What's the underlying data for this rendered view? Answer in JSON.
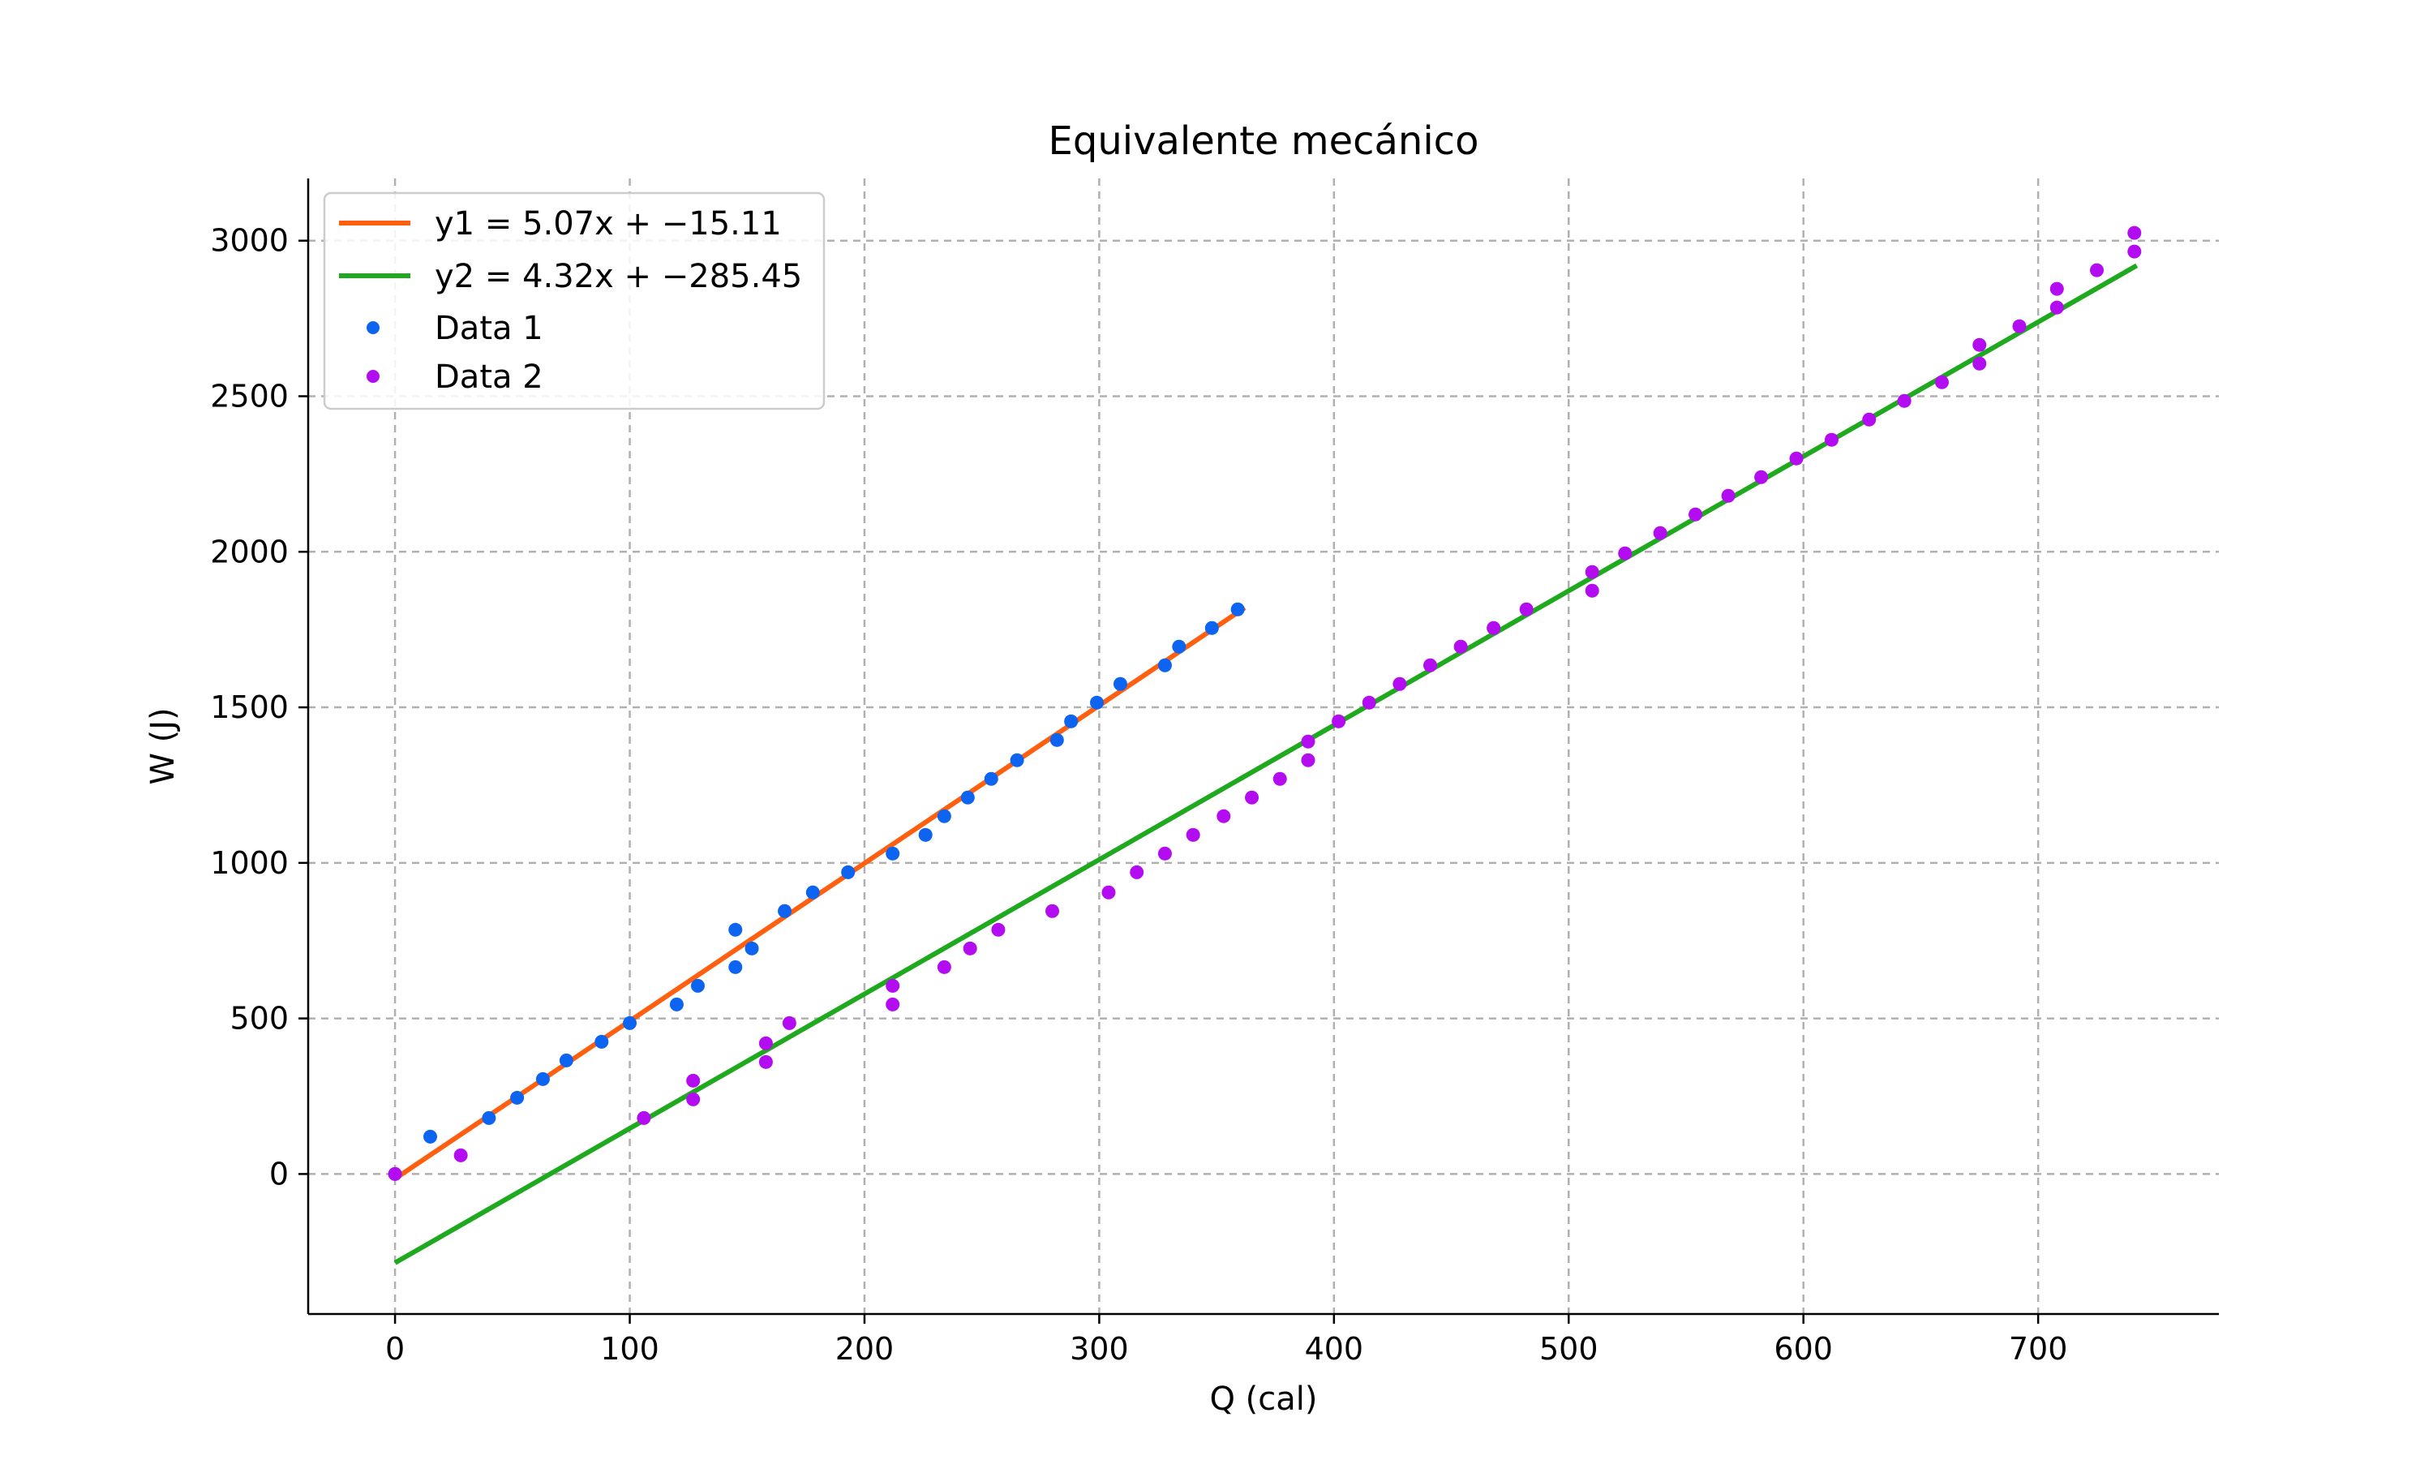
{
  "chart_data": {
    "type": "scatter",
    "title": "Equivalente mecánico",
    "xlabel": "Q (cal)",
    "ylabel": "W (J)",
    "xlim": [
      -37,
      777
    ],
    "ylim": [
      -450,
      3200
    ],
    "xticks": [
      0,
      100,
      200,
      300,
      400,
      500,
      600,
      700
    ],
    "yticks": [
      0,
      500,
      1000,
      1500,
      2000,
      2500,
      3000
    ],
    "grid": true,
    "legend_position": "top-left",
    "fits": [
      {
        "name": "y1 = 5.07x + −15.11",
        "slope": 5.07,
        "intercept": -15.11,
        "x_range": [
          0,
          362
        ],
        "color": "#ff5f0f"
      },
      {
        "name": "y2 = 4.32x + −285.45",
        "slope": 4.32,
        "intercept": -285.45,
        "x_range": [
          0,
          742
        ],
        "color": "#1ea91e"
      }
    ],
    "series": [
      {
        "name": "Data 1",
        "color": "#0d64f0",
        "points": [
          [
            0,
            0
          ],
          [
            15,
            120
          ],
          [
            40,
            180
          ],
          [
            52,
            245
          ],
          [
            63,
            305
          ],
          [
            73,
            365
          ],
          [
            88,
            425
          ],
          [
            100,
            485
          ],
          [
            120,
            545
          ],
          [
            129,
            605
          ],
          [
            145,
            665
          ],
          [
            145,
            785
          ],
          [
            152,
            725
          ],
          [
            166,
            845
          ],
          [
            178,
            905
          ],
          [
            193,
            970
          ],
          [
            212,
            1030
          ],
          [
            226,
            1090
          ],
          [
            234,
            1150
          ],
          [
            244,
            1210
          ],
          [
            254,
            1270
          ],
          [
            265,
            1330
          ],
          [
            282,
            1395
          ],
          [
            288,
            1455
          ],
          [
            299,
            1515
          ],
          [
            309,
            1575
          ],
          [
            328,
            1635
          ],
          [
            334,
            1695
          ],
          [
            348,
            1755
          ],
          [
            359,
            1815
          ]
        ]
      },
      {
        "name": "Data 2",
        "color": "#b30cf0",
        "points": [
          [
            0,
            0
          ],
          [
            28,
            60
          ],
          [
            106,
            180
          ],
          [
            127,
            240
          ],
          [
            127,
            300
          ],
          [
            158,
            360
          ],
          [
            158,
            420
          ],
          [
            168,
            485
          ],
          [
            212,
            545
          ],
          [
            212,
            605
          ],
          [
            234,
            665
          ],
          [
            245,
            725
          ],
          [
            257,
            785
          ],
          [
            280,
            845
          ],
          [
            304,
            905
          ],
          [
            316,
            970
          ],
          [
            328,
            1030
          ],
          [
            340,
            1090
          ],
          [
            353,
            1150
          ],
          [
            365,
            1210
          ],
          [
            377,
            1270
          ],
          [
            389,
            1330
          ],
          [
            389,
            1390
          ],
          [
            402,
            1455
          ],
          [
            415,
            1515
          ],
          [
            428,
            1575
          ],
          [
            441,
            1635
          ],
          [
            454,
            1695
          ],
          [
            468,
            1755
          ],
          [
            482,
            1815
          ],
          [
            510,
            1875
          ],
          [
            510,
            1935
          ],
          [
            524,
            1995
          ],
          [
            539,
            2060
          ],
          [
            554,
            2120
          ],
          [
            568,
            2180
          ],
          [
            582,
            2240
          ],
          [
            597,
            2300
          ],
          [
            612,
            2360
          ],
          [
            628,
            2425
          ],
          [
            643,
            2485
          ],
          [
            659,
            2545
          ],
          [
            675,
            2605
          ],
          [
            675,
            2665
          ],
          [
            692,
            2725
          ],
          [
            708,
            2785
          ],
          [
            708,
            2845
          ],
          [
            725,
            2905
          ],
          [
            741,
            2965
          ],
          [
            741,
            3025
          ]
        ]
      }
    ]
  }
}
